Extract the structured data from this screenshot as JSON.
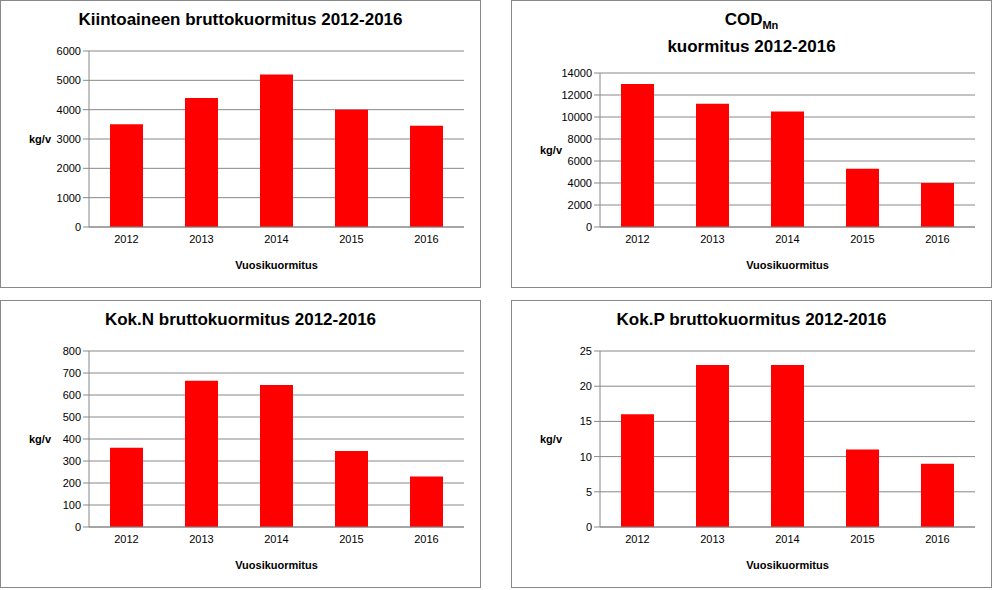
{
  "chart_data": [
    {
      "type": "bar",
      "title": "Kiintoaineen bruttokuormitus 2012-2016",
      "categories": [
        "2012",
        "2013",
        "2014",
        "2015",
        "2016"
      ],
      "values": [
        3500,
        4400,
        5200,
        4000,
        3450
      ],
      "color": "#ff0000",
      "ylim": [
        0,
        6000
      ],
      "yticks": [
        0,
        1000,
        2000,
        3000,
        4000,
        5000,
        6000
      ],
      "grid": true,
      "ylabel": "kg/v",
      "xlabel": "Vuosikuormitus"
    },
    {
      "type": "bar",
      "title": "COD",
      "title_subscript": "Mn",
      "subtitle": "kuormitus 2012-2016",
      "categories": [
        "2012",
        "2013",
        "2014",
        "2015",
        "2016"
      ],
      "values": [
        13000,
        11200,
        10500,
        5300,
        4000
      ],
      "color": "#ff0000",
      "ylim": [
        0,
        14000
      ],
      "yticks": [
        0,
        2000,
        4000,
        6000,
        8000,
        10000,
        12000,
        14000
      ],
      "grid": true,
      "ylabel": "kg/v",
      "xlabel": "Vuosikuormitus"
    },
    {
      "type": "bar",
      "title": "Kok.N bruttokuormitus 2012-2016",
      "categories": [
        "2012",
        "2013",
        "2014",
        "2015",
        "2016"
      ],
      "values": [
        360,
        665,
        645,
        345,
        230
      ],
      "color": "#ff0000",
      "ylim": [
        0,
        800
      ],
      "yticks": [
        0,
        100,
        200,
        300,
        400,
        500,
        600,
        700,
        800
      ],
      "grid": true,
      "ylabel": "kg/v",
      "xlabel": "Vuosikuormitus"
    },
    {
      "type": "bar",
      "title": "Kok.P bruttokuormitus 2012-2016",
      "categories": [
        "2012",
        "2013",
        "2014",
        "2015",
        "2016"
      ],
      "values": [
        16,
        23,
        23,
        11,
        9
      ],
      "color": "#ff0000",
      "ylim": [
        0,
        25
      ],
      "yticks": [
        0,
        5,
        10,
        15,
        20,
        25
      ],
      "grid": true,
      "ylabel": "kg/v",
      "xlabel": "Vuosikuormitus"
    }
  ]
}
